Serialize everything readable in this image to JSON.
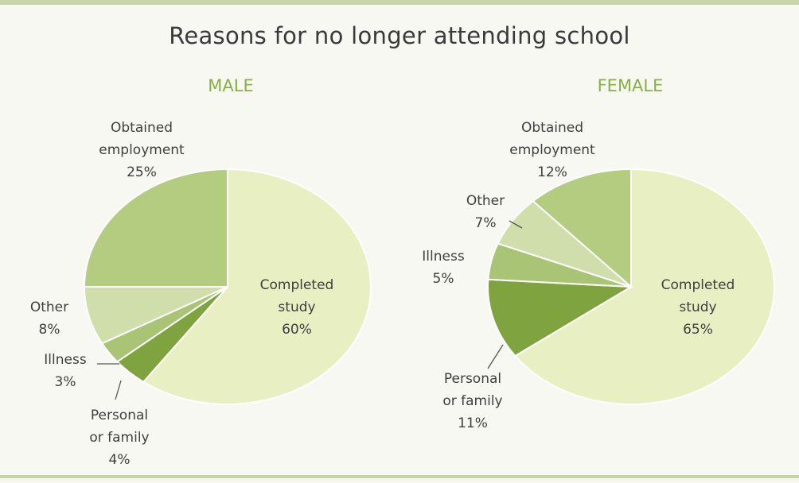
{
  "title": "Reasons for no longer attending school",
  "colors": {
    "completed": "#e8f0c3",
    "employment": "#b3cc80",
    "other": "#cfdeaa",
    "illness": "#a9c474",
    "personal": "#7fa43f"
  },
  "chart_data": [
    {
      "type": "pie",
      "title": "MALE",
      "slices": [
        {
          "label": [
            "Completed",
            "study"
          ],
          "value": 60,
          "value_label": "60%",
          "color_key": "completed"
        },
        {
          "label": [
            "Personal",
            "or family"
          ],
          "value": 4,
          "value_label": "4%",
          "color_key": "personal"
        },
        {
          "label": [
            "Illness"
          ],
          "value": 3,
          "value_label": "3%",
          "color_key": "illness"
        },
        {
          "label": [
            "Other"
          ],
          "value": 8,
          "value_label": "8%",
          "color_key": "other"
        },
        {
          "label": [
            "Obtained",
            "employment"
          ],
          "value": 25,
          "value_label": "25%",
          "color_key": "employment"
        }
      ]
    },
    {
      "type": "pie",
      "title": "FEMALE",
      "slices": [
        {
          "label": [
            "Completed",
            "study"
          ],
          "value": 65,
          "value_label": "65%",
          "color_key": "completed"
        },
        {
          "label": [
            "Personal",
            "or family"
          ],
          "value": 11,
          "value_label": "11%",
          "color_key": "personal"
        },
        {
          "label": [
            "Illness"
          ],
          "value": 5,
          "value_label": "5%",
          "color_key": "illness"
        },
        {
          "label": [
            "Other"
          ],
          "value": 7,
          "value_label": "7%",
          "color_key": "other"
        },
        {
          "label": [
            "Obtained",
            "employment"
          ],
          "value": 12,
          "value_label": "12%",
          "color_key": "employment"
        }
      ]
    }
  ]
}
